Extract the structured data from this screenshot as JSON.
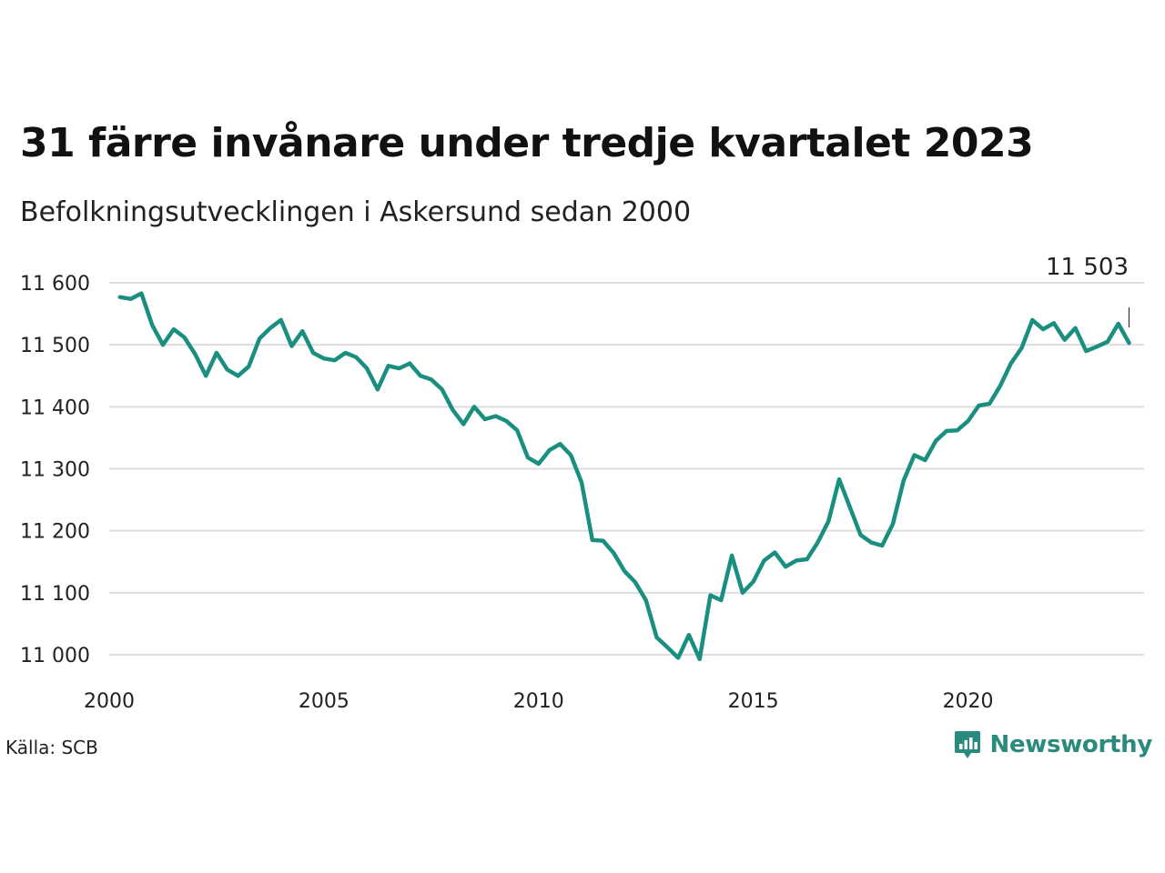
{
  "header": {
    "title": "31 färre invånare under tredje kvartalet 2023",
    "subtitle": "Befolkningsutvecklingen i Askersund sedan 2000"
  },
  "footer": {
    "source": "Källa: SCB",
    "brand": "Newsworthy"
  },
  "colors": {
    "line": "#1a8f80",
    "grid": "#dddddd",
    "brand": "#2a8a7e"
  },
  "chart_data": {
    "type": "line",
    "title": "31 färre invånare under tredje kvartalet 2023",
    "subtitle": "Befolkningsutvecklingen i Askersund sedan 2000",
    "xlabel": "",
    "ylabel": "",
    "xlim": [
      2000.0,
      2024.1
    ],
    "ylim": [
      10990,
      11620
    ],
    "x_ticks": [
      2000,
      2005,
      2010,
      2015,
      2020
    ],
    "x_tick_labels": [
      "2000",
      "2005",
      "2010",
      "2015",
      "2020"
    ],
    "y_ticks": [
      11000,
      11100,
      11200,
      11300,
      11400,
      11500,
      11600
    ],
    "y_tick_labels": [
      "11 000",
      "11 100",
      "11 200",
      "11 300",
      "11 400",
      "11 500",
      "11 600"
    ],
    "grid": true,
    "end_label": "11 503",
    "series": [
      {
        "x": [
          2000.25,
          2000.5,
          2000.75,
          2001.0,
          2001.25,
          2001.5,
          2001.75,
          2002.0,
          2002.25,
          2002.5,
          2002.75,
          2003.0,
          2003.25,
          2003.5,
          2003.75,
          2004.0,
          2004.25,
          2004.5,
          2004.75,
          2005.0,
          2005.25,
          2005.5,
          2005.75,
          2006.0,
          2006.25,
          2006.5,
          2006.75,
          2007.0,
          2007.25,
          2007.5,
          2007.75,
          2008.0,
          2008.25,
          2008.5,
          2008.75,
          2009.0,
          2009.25,
          2009.5,
          2009.75,
          2010.0,
          2010.25,
          2010.5,
          2010.75,
          2011.0,
          2011.25,
          2011.5,
          2011.75,
          2012.0,
          2012.25,
          2012.5,
          2012.75,
          2013.0,
          2013.25,
          2013.5,
          2013.75,
          2014.0,
          2014.25,
          2014.5,
          2014.75,
          2015.0,
          2015.25,
          2015.5,
          2015.75,
          2016.0,
          2016.25,
          2016.5,
          2016.75,
          2017.0,
          2017.25,
          2017.5,
          2017.75,
          2018.0,
          2018.25,
          2018.5,
          2018.75,
          2019.0,
          2019.25,
          2019.5,
          2019.75,
          2020.0,
          2020.25,
          2020.5,
          2020.75,
          2021.0,
          2021.25,
          2021.5,
          2021.75,
          2022.0,
          2022.25,
          2022.5,
          2022.75,
          2023.0,
          2023.25,
          2023.5,
          2023.75
        ],
        "values": [
          11577,
          11574,
          11583,
          11532,
          11500,
          11525,
          11512,
          11485,
          11450,
          11487,
          11460,
          11450,
          11465,
          11510,
          11527,
          11540,
          11498,
          11522,
          11487,
          11478,
          11475,
          11487,
          11480,
          11462,
          11428,
          11466,
          11462,
          11470,
          11450,
          11444,
          11428,
          11395,
          11372,
          11400,
          11380,
          11385,
          11377,
          11362,
          11318,
          11308,
          11330,
          11340,
          11322,
          11278,
          11185,
          11184,
          11164,
          11135,
          11117,
          11088,
          11028,
          11012,
          10995,
          11032,
          10993,
          11096,
          11088,
          11160,
          11100,
          11118,
          11152,
          11165,
          11142,
          11152,
          11154,
          11181,
          11215,
          11283,
          11238,
          11193,
          11181,
          11176,
          11211,
          11281,
          11322,
          11314,
          11345,
          11361,
          11362,
          11377,
          11402,
          11405,
          11434,
          11470,
          11495,
          11540,
          11525,
          11535,
          11508,
          11527,
          11490,
          11497,
          11505,
          11534,
          11503
        ]
      }
    ]
  }
}
